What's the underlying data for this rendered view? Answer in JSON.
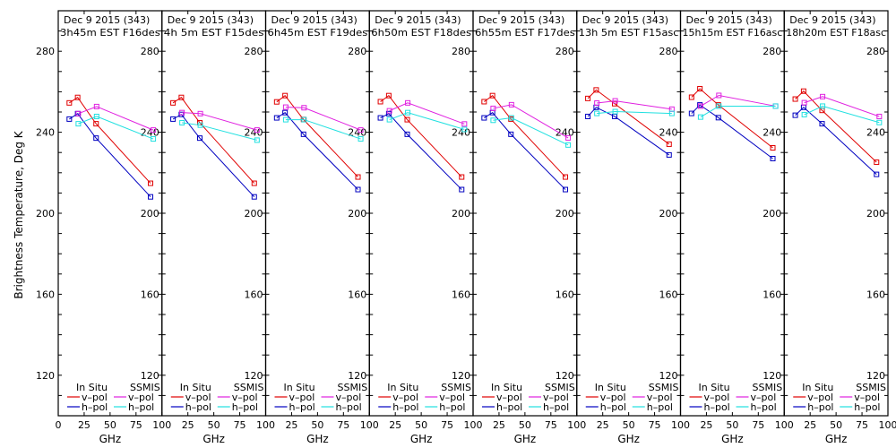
{
  "chart_data": {
    "type": "line",
    "ylabel": "Brightness Temperature, Deg K",
    "xlabel": "GHz",
    "xlim": [
      0,
      100
    ],
    "ylim": [
      100,
      300
    ],
    "x_ticks": [
      0,
      25,
      50,
      75,
      100
    ],
    "y_tick_labels": [
      120,
      160,
      200,
      240,
      280
    ],
    "y_minor_step": 10,
    "grid": false,
    "legend": {
      "placement": "bottom",
      "groups": [
        {
          "title": "In Situ",
          "entries": [
            {
              "label": "v-pol",
              "color": "#e00000"
            },
            {
              "label": "h-pol",
              "color": "#0000c0"
            }
          ]
        },
        {
          "title": "SSMIS",
          "entries": [
            {
              "label": "v-pol",
              "color": "#e020e0"
            },
            {
              "label": "h-pol",
              "color": "#20e0e0"
            }
          ]
        }
      ]
    },
    "series_colors": {
      "insitu_v": "#e00000",
      "insitu_h": "#0000c0",
      "ssmis_v": "#e020e0",
      "ssmis_h": "#20e0e0"
    },
    "frequencies": {
      "insitu": [
        10.65,
        18.7,
        36.5,
        89
      ],
      "ssmis": [
        19.35,
        37,
        91.65
      ]
    },
    "panels": [
      {
        "title_line1": "Dec 9 2015 (343)",
        "title_line2": "3h45m EST F16des",
        "insitu_v": [
          254.5,
          257.2,
          244.2,
          214.8
        ],
        "insitu_h": [
          246.5,
          249.2,
          237.1,
          208.1
        ],
        "ssmis_v": [
          249.2,
          252.7,
          241.1
        ],
        "ssmis_h": [
          244.2,
          247.8,
          236.7
        ]
      },
      {
        "title_line1": "Dec 9 2015 (343)",
        "title_line2": "4h 5m EST F15des",
        "insitu_v": [
          254.5,
          257.2,
          244.7,
          214.8
        ],
        "insitu_h": [
          246.5,
          248.8,
          237.1,
          208.1
        ],
        "ssmis_v": [
          249.7,
          249.2,
          241.1
        ],
        "ssmis_h": [
          244.7,
          243.5,
          236.1
        ]
      },
      {
        "title_line1": "Dec 9 2015 (343)",
        "title_line2": "6h45m EST F19des",
        "insitu_v": [
          255.0,
          258.1,
          246.3,
          217.9
        ],
        "insitu_h": [
          247.1,
          249.7,
          239.0,
          211.7
        ],
        "ssmis_v": [
          252.4,
          252.1,
          241.1
        ],
        "ssmis_h": [
          246.2,
          246.2,
          236.7
        ]
      },
      {
        "title_line1": "Dec 9 2015 (343)",
        "title_line2": "6h50m EST F18des",
        "insitu_v": [
          255.1,
          258.1,
          246.2,
          217.9
        ],
        "insitu_h": [
          247.1,
          249.2,
          239.0,
          211.7
        ],
        "ssmis_v": [
          250.6,
          254.5,
          244.1
        ],
        "ssmis_h": [
          246.2,
          249.7,
          241.4
        ]
      },
      {
        "title_line1": "Dec 9 2015 (343)",
        "title_line2": "6h55m EST F17des",
        "insitu_v": [
          255.1,
          258.1,
          246.5,
          217.9
        ],
        "insitu_h": [
          247.1,
          249.7,
          239.0,
          211.7
        ],
        "ssmis_v": [
          251.8,
          253.6,
          237.2
        ],
        "ssmis_h": [
          245.9,
          247.1,
          233.7
        ]
      },
      {
        "title_line1": "Dec 9 2015 (343)",
        "title_line2": "13h 5m EST F15asc",
        "insitu_v": [
          256.7,
          260.9,
          254.1,
          234.1
        ],
        "insitu_h": [
          247.8,
          252.3,
          247.8,
          228.8
        ],
        "ssmis_v": [
          254.4,
          255.5,
          251.4
        ],
        "ssmis_h": [
          249.3,
          250.2,
          249.3
        ]
      },
      {
        "title_line1": "Dec 9 2015 (343)",
        "title_line2": "15h15m EST F16asc",
        "insitu_v": [
          257.3,
          261.5,
          253.5,
          232.3
        ],
        "insitu_h": [
          249.3,
          253.5,
          247.2,
          227.0
        ],
        "ssmis_v": [
          252.9,
          258.2,
          252.9
        ],
        "ssmis_h": [
          247.5,
          252.9,
          252.9
        ]
      },
      {
        "title_line1": "Dec 9 2015 (343)",
        "title_line2": "18h20m EST F18asc",
        "insitu_v": [
          256.4,
          260.3,
          250.8,
          225.2
        ],
        "insitu_h": [
          248.4,
          252.3,
          244.2,
          219.2
        ],
        "ssmis_v": [
          254.6,
          257.6,
          247.8
        ],
        "ssmis_h": [
          248.7,
          252.9,
          244.8
        ]
      }
    ]
  }
}
